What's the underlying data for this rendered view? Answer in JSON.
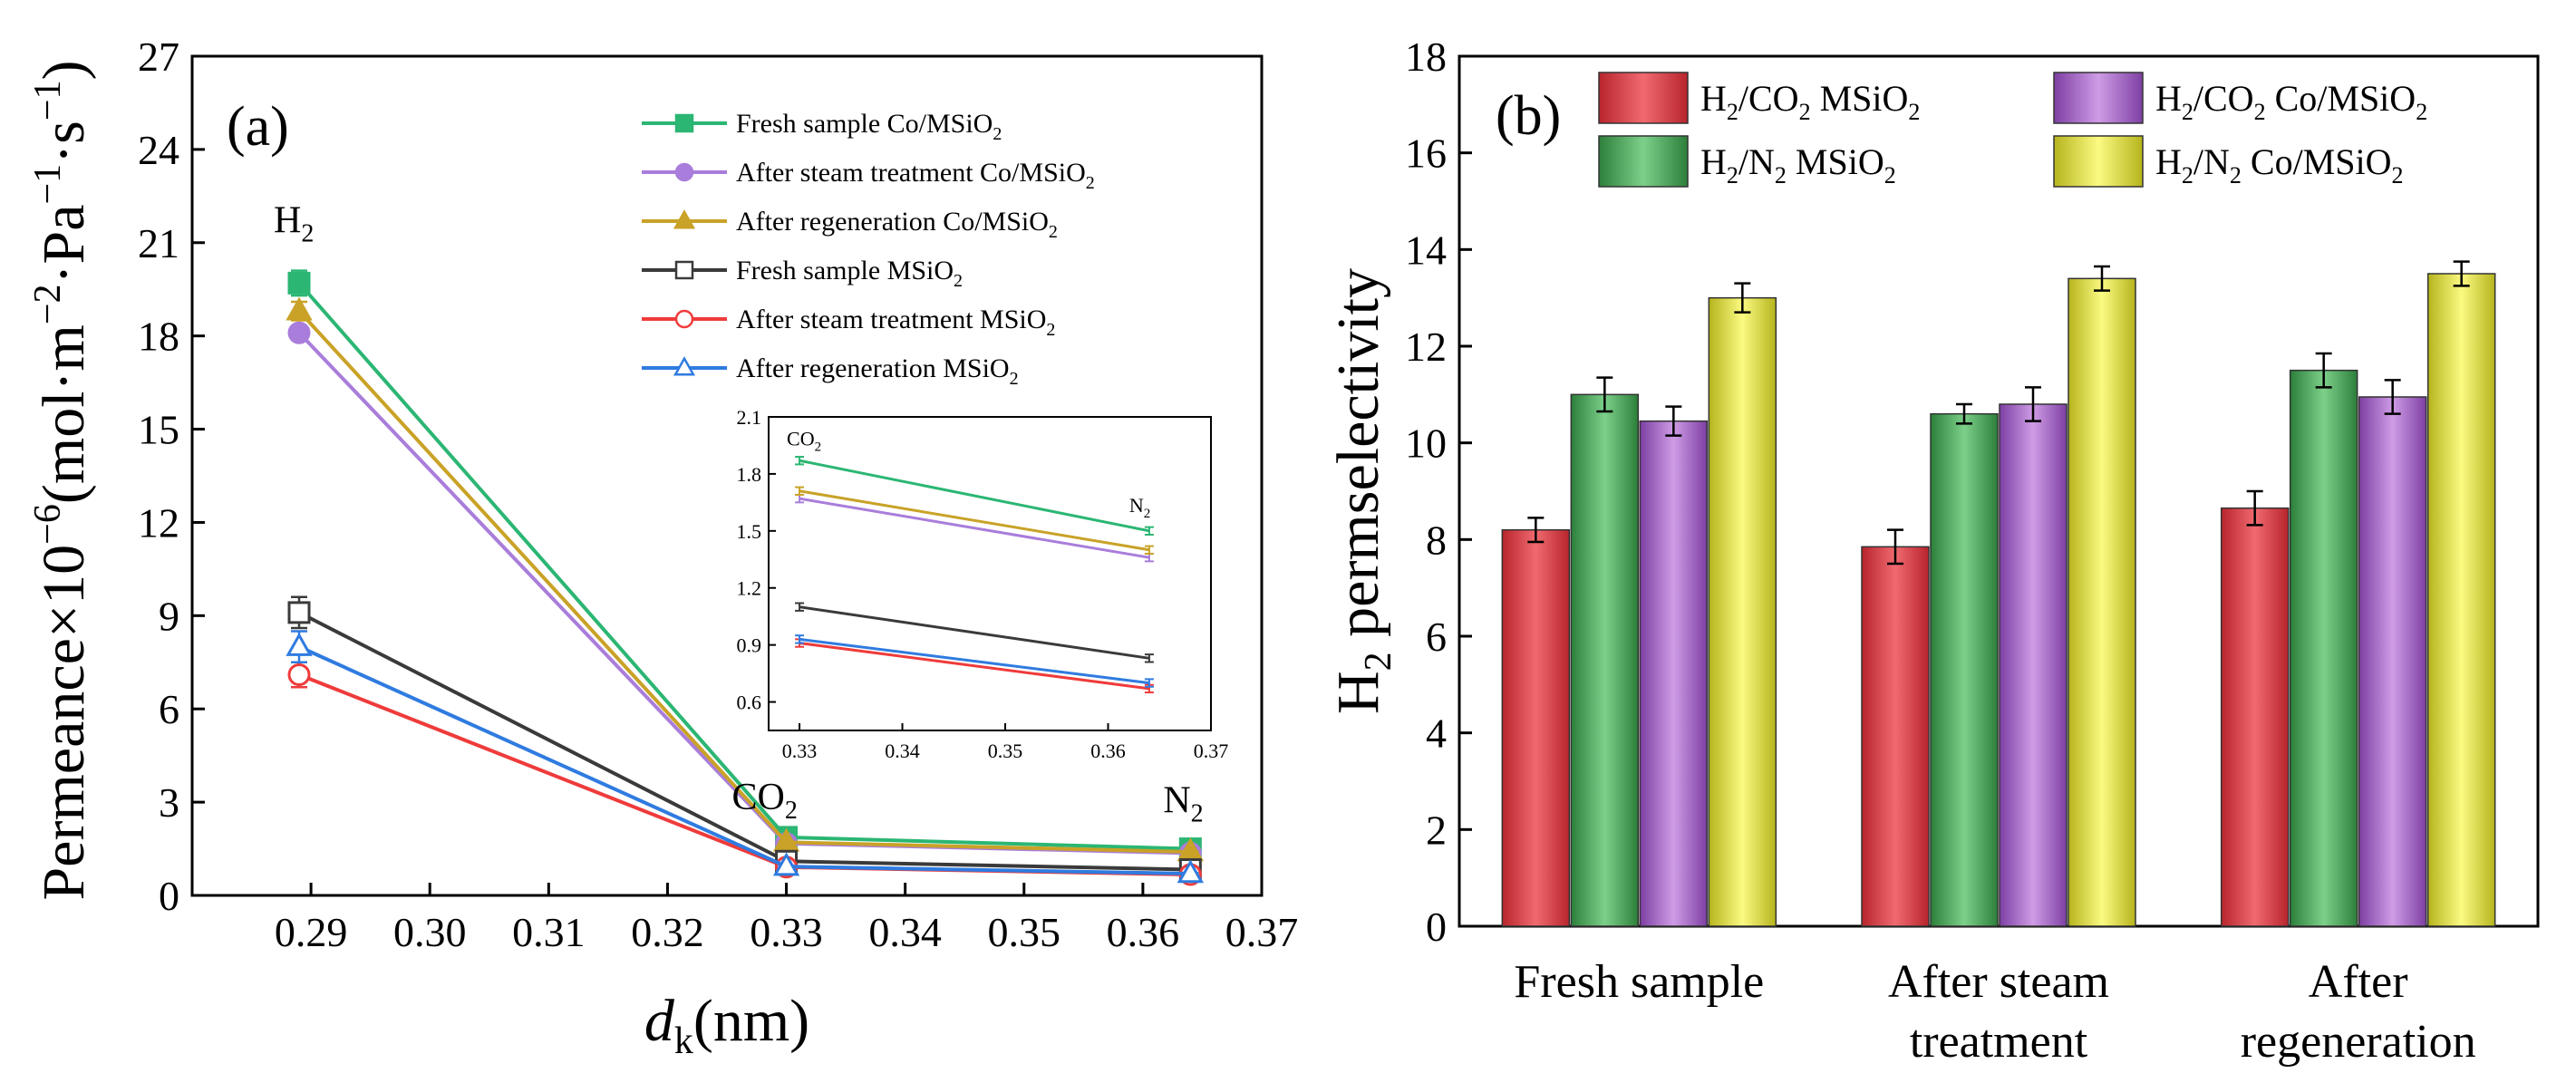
{
  "chart_data": [
    {
      "type": "line",
      "panel_label": "(a)",
      "ylabel": "Permeance×10⁻⁶(mol·m⁻²·Pa⁻¹·s⁻¹)",
      "xlabel_main": "d",
      "xlabel_sub": "k",
      "xlabel_unit": "(nm)",
      "xlim": [
        0.28,
        0.37
      ],
      "ylim": [
        0,
        27
      ],
      "xticks": [
        0.29,
        0.3,
        0.31,
        0.32,
        0.33,
        0.34,
        0.35,
        0.36,
        0.37
      ],
      "xtick_labels": [
        "0.29",
        "0.30",
        "0.31",
        "0.32",
        "0.33",
        "0.34",
        "0.35",
        "0.36",
        "0.37"
      ],
      "yticks": [
        0,
        3,
        6,
        9,
        12,
        15,
        18,
        21,
        24,
        27
      ],
      "ytick_labels": [
        "0",
        "3",
        "6",
        "9",
        "12",
        "15",
        "18",
        "21",
        "24",
        "27"
      ],
      "x": [
        0.289,
        0.33,
        0.364
      ],
      "gas_labels": [
        "H₂",
        "CO₂",
        "N₂"
      ],
      "legend_position": "top-right",
      "series": [
        {
          "name": "Fresh sample  Co/MSiO₂",
          "color": "#2bb673",
          "marker": "square-filled",
          "values": [
            19.7,
            1.87,
            1.5
          ],
          "errors": [
            0.4,
            0.02,
            0.02
          ]
        },
        {
          "name": "After steam treatment  Co/MSiO₂",
          "color": "#a97ddb",
          "marker": "circle-filled",
          "values": [
            18.1,
            1.67,
            1.36
          ],
          "errors": [
            0.2,
            0.02,
            0.02
          ]
        },
        {
          "name": "After regeneration  Co/MSiO₂",
          "color": "#c9a227",
          "marker": "triangle-filled",
          "values": [
            18.8,
            1.71,
            1.4
          ],
          "errors": [
            0.3,
            0.02,
            0.02
          ]
        },
        {
          "name": "Fresh sample  MSiO₂",
          "color": "#3a3a3a",
          "marker": "square-open",
          "values": [
            9.1,
            1.1,
            0.83
          ],
          "errors": [
            0.5,
            0.02,
            0.02
          ]
        },
        {
          "name": "After steam treatment  MSiO₂",
          "color": "#ef3b3b",
          "marker": "circle-open",
          "values": [
            7.1,
            0.91,
            0.67
          ],
          "errors": [
            0.4,
            0.02,
            0.02
          ]
        },
        {
          "name": "After regeneration  MSiO₂",
          "color": "#2f7be0",
          "marker": "triangle-open",
          "values": [
            8.0,
            0.93,
            0.7
          ],
          "errors": [
            0.5,
            0.02,
            0.02
          ]
        }
      ],
      "inset": {
        "x": [
          0.33,
          0.364
        ],
        "xlim": [
          0.327,
          0.37
        ],
        "ylim": [
          0.45,
          2.1
        ],
        "xticks": [
          0.33,
          0.34,
          0.35,
          0.36,
          0.37
        ],
        "xtick_labels": [
          "0.33",
          "0.34",
          "0.35",
          "0.36",
          "0.37"
        ],
        "yticks": [
          0.6,
          0.9,
          1.2,
          1.5,
          1.8,
          2.1
        ],
        "ytick_labels": [
          "0.6",
          "0.9",
          "1.2",
          "1.5",
          "1.8",
          "2.1"
        ],
        "gas_labels": [
          "CO₂",
          "N₂"
        ]
      }
    },
    {
      "type": "bar",
      "panel_label": "(b)",
      "ylabel": "H₂ permselectivity",
      "ylim": [
        0,
        18
      ],
      "yticks": [
        0,
        2,
        4,
        6,
        8,
        10,
        12,
        14,
        16,
        18
      ],
      "ytick_labels": [
        "0",
        "2",
        "4",
        "6",
        "8",
        "10",
        "12",
        "14",
        "16",
        "18"
      ],
      "categories": [
        [
          "Fresh sample"
        ],
        [
          "After steam",
          "treatment"
        ],
        [
          "After",
          "regeneration"
        ]
      ],
      "legend_position": "top",
      "series": [
        {
          "name": "H₂/CO₂   MSiO₂",
          "color": "#e0464e",
          "values": [
            8.2,
            7.85,
            8.65
          ],
          "errors": [
            0.25,
            0.35,
            0.35
          ]
        },
        {
          "name": "H₂/N₂   MSiO₂",
          "color": "#4cae5c",
          "values": [
            11.0,
            10.6,
            11.5
          ],
          "errors": [
            0.35,
            0.2,
            0.35
          ]
        },
        {
          "name": "H₂/CO₂   Co/MSiO₂",
          "color": "#a86ac9",
          "values": [
            10.45,
            10.8,
            10.95
          ],
          "errors": [
            0.3,
            0.35,
            0.35
          ]
        },
        {
          "name": "H₂/N₂   Co/MSiO₂",
          "color": "#e6e43a",
          "values": [
            13.0,
            13.4,
            13.5
          ],
          "errors": [
            0.3,
            0.25,
            0.25
          ]
        }
      ]
    }
  ]
}
